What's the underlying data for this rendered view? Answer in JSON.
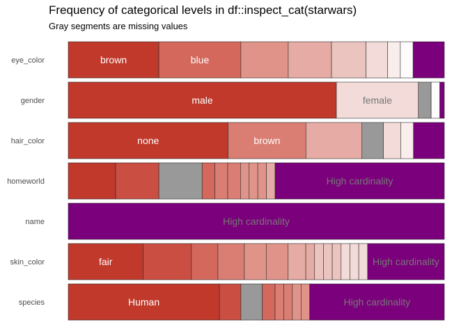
{
  "title": "Frequency of categorical levels in df::inspect_cat(starwars)",
  "subtitle": "Gray segments are missing values",
  "colors": {
    "high_cardinality": "#7b007b",
    "missing": "#999999",
    "level_palette": [
      "#c0392b",
      "#cb4e42",
      "#d4685d",
      "#da7d73",
      "#e09489",
      "#e5aba4",
      "#ecc4bf",
      "#f2dbd8",
      "#f9eeec",
      "#fdfbfb"
    ],
    "label_on_dark": "#ffffff",
    "label_on_light": "#777777"
  },
  "chart_data": {
    "type": "bar",
    "orientation": "horizontal",
    "stacked_proportions": true,
    "categories": [
      "eye_color",
      "gender",
      "hair_color",
      "homeworld",
      "name",
      "skin_color",
      "species"
    ],
    "xlim": [
      0,
      1
    ],
    "grid": false,
    "legend": "none",
    "bars": [
      {
        "variable": "eye_color",
        "segments": [
          {
            "value": 0.241,
            "kind": "level",
            "shade": 0,
            "label": "brown"
          },
          {
            "value": 0.218,
            "kind": "level",
            "shade": 2,
            "label": "blue"
          },
          {
            "value": 0.126,
            "kind": "level",
            "shade": 4
          },
          {
            "value": 0.115,
            "kind": "level",
            "shade": 5
          },
          {
            "value": 0.092,
            "kind": "level",
            "shade": 6
          },
          {
            "value": 0.057,
            "kind": "level",
            "shade": 7
          },
          {
            "value": 0.034,
            "kind": "level",
            "shade": 8
          },
          {
            "value": 0.034,
            "kind": "level",
            "shade": 9
          },
          {
            "value": 0.083,
            "kind": "high_cardinality"
          }
        ]
      },
      {
        "variable": "gender",
        "segments": [
          {
            "value": 0.713,
            "kind": "level",
            "shade": 0,
            "label": "male"
          },
          {
            "value": 0.218,
            "kind": "level",
            "shade": 7,
            "label": "female"
          },
          {
            "value": 0.034,
            "kind": "missing"
          },
          {
            "value": 0.023,
            "kind": "level",
            "shade": 9
          },
          {
            "value": 0.012,
            "kind": "high_cardinality"
          }
        ]
      },
      {
        "variable": "hair_color",
        "segments": [
          {
            "value": 0.425,
            "kind": "level",
            "shade": 0,
            "label": "none"
          },
          {
            "value": 0.207,
            "kind": "level",
            "shade": 3,
            "label": "brown"
          },
          {
            "value": 0.149,
            "kind": "level",
            "shade": 5
          },
          {
            "value": 0.057,
            "kind": "missing"
          },
          {
            "value": 0.046,
            "kind": "level",
            "shade": 7
          },
          {
            "value": 0.034,
            "kind": "level",
            "shade": 8
          },
          {
            "value": 0.082,
            "kind": "high_cardinality"
          }
        ]
      },
      {
        "variable": "homeworld",
        "segments": [
          {
            "value": 0.126,
            "kind": "level",
            "shade": 0
          },
          {
            "value": 0.115,
            "kind": "level",
            "shade": 1
          },
          {
            "value": 0.115,
            "kind": "missing"
          },
          {
            "value": 0.034,
            "kind": "level",
            "shade": 2
          },
          {
            "value": 0.034,
            "kind": "level",
            "shade": 3
          },
          {
            "value": 0.034,
            "kind": "level",
            "shade": 3
          },
          {
            "value": 0.023,
            "kind": "level",
            "shade": 4
          },
          {
            "value": 0.023,
            "kind": "level",
            "shade": 4
          },
          {
            "value": 0.023,
            "kind": "level",
            "shade": 4
          },
          {
            "value": 0.023,
            "kind": "level",
            "shade": 5
          },
          {
            "value": 0.45,
            "kind": "high_cardinality",
            "label": "High cardinality"
          }
        ]
      },
      {
        "variable": "name",
        "segments": [
          {
            "value": 1.0,
            "kind": "high_cardinality",
            "label": "High cardinality"
          }
        ]
      },
      {
        "variable": "skin_color",
        "segments": [
          {
            "value": 0.195,
            "kind": "level",
            "shade": 0,
            "label": "fair"
          },
          {
            "value": 0.126,
            "kind": "level",
            "shade": 1
          },
          {
            "value": 0.069,
            "kind": "level",
            "shade": 2
          },
          {
            "value": 0.069,
            "kind": "level",
            "shade": 3
          },
          {
            "value": 0.057,
            "kind": "level",
            "shade": 4
          },
          {
            "value": 0.057,
            "kind": "level",
            "shade": 4
          },
          {
            "value": 0.046,
            "kind": "level",
            "shade": 5
          },
          {
            "value": 0.023,
            "kind": "level",
            "shade": 5
          },
          {
            "value": 0.023,
            "kind": "level",
            "shade": 6
          },
          {
            "value": 0.023,
            "kind": "level",
            "shade": 6
          },
          {
            "value": 0.023,
            "kind": "level",
            "shade": 6
          },
          {
            "value": 0.023,
            "kind": "level",
            "shade": 7
          },
          {
            "value": 0.023,
            "kind": "level",
            "shade": 7
          },
          {
            "value": 0.023,
            "kind": "level",
            "shade": 7
          },
          {
            "value": 0.2,
            "kind": "high_cardinality",
            "label": "High cardinality"
          }
        ]
      },
      {
        "variable": "species",
        "segments": [
          {
            "value": 0.402,
            "kind": "level",
            "shade": 0,
            "label": "Human"
          },
          {
            "value": 0.057,
            "kind": "level",
            "shade": 1
          },
          {
            "value": 0.057,
            "kind": "missing"
          },
          {
            "value": 0.034,
            "kind": "level",
            "shade": 2
          },
          {
            "value": 0.023,
            "kind": "level",
            "shade": 3
          },
          {
            "value": 0.023,
            "kind": "level",
            "shade": 3
          },
          {
            "value": 0.023,
            "kind": "level",
            "shade": 4
          },
          {
            "value": 0.023,
            "kind": "level",
            "shade": 4
          },
          {
            "value": 0.358,
            "kind": "high_cardinality",
            "label": "High cardinality"
          }
        ]
      }
    ]
  }
}
